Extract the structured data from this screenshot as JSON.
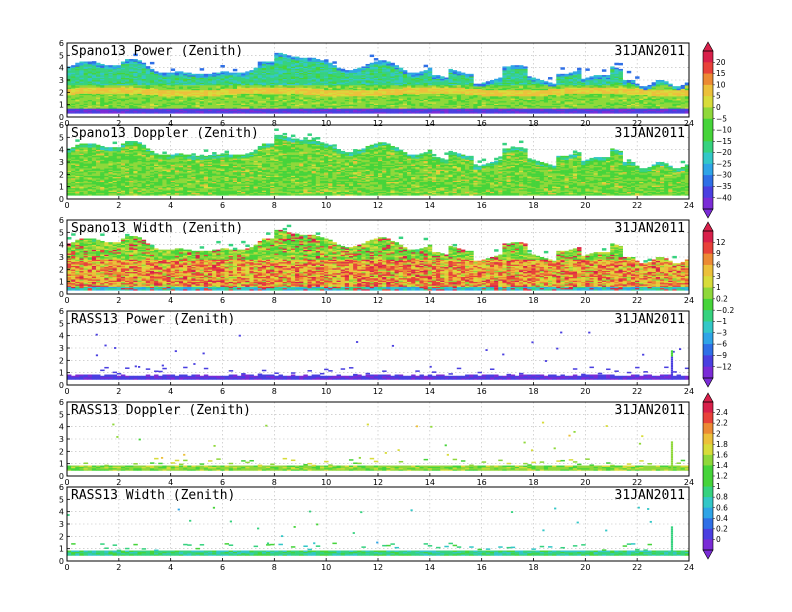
{
  "chart_data": {
    "type": "heatmap",
    "date": "31JAN2011",
    "x_axis": {
      "range": [
        0,
        24
      ],
      "ticks": [
        0,
        2,
        4,
        6,
        8,
        10,
        12,
        14,
        16,
        18,
        20,
        22,
        24
      ]
    },
    "y_axis": {
      "range": [
        0,
        6
      ],
      "ticks": [
        0,
        1,
        2,
        3,
        4,
        5,
        6
      ]
    },
    "grid": true,
    "panels": [
      {
        "title": "Spano13 Power (Zenith)",
        "date_label": "31JAN2011",
        "variable": "power",
        "colorbar": 0
      },
      {
        "title": "Spano13 Doppler (Zenith)",
        "date_label": "31JAN2011",
        "variable": "doppler",
        "colorbar": 0
      },
      {
        "title": "Spano13 Width (Zenith)",
        "date_label": "31JAN2011",
        "variable": "width",
        "colorbar": 1
      },
      {
        "title": "RASS13 Power (Zenith)",
        "date_label": "31JAN2011",
        "variable": "power",
        "colorbar": 1
      },
      {
        "title": "RASS13 Doppler (Zenith)",
        "date_label": "31JAN2011",
        "variable": "doppler",
        "colorbar": 2
      },
      {
        "title": "RASS13 Width (Zenith)",
        "date_label": "31JAN2011",
        "variable": "width",
        "colorbar": 2
      }
    ],
    "colorbars": [
      {
        "labels": [
          "20",
          "15",
          "10",
          "5",
          "0",
          "−5",
          "−10",
          "−15",
          "−20",
          "−25",
          "−30",
          "−35",
          "−40"
        ]
      },
      {
        "labels": [
          "12",
          "9",
          "6",
          "3",
          "1",
          "0.2",
          "−0.2",
          "−1",
          "−3",
          "−6",
          "−9",
          "−12"
        ]
      },
      {
        "labels": [
          "2.4",
          "2.2",
          "2",
          "1.8",
          "1.6",
          "1.4",
          "1.2",
          "1",
          "0.8",
          "0.6",
          "0.4",
          "0.2",
          "0"
        ]
      }
    ],
    "colors": [
      "#7a2bd6",
      "#4a3fe0",
      "#2f6fe6",
      "#2fa4e6",
      "#33c7c7",
      "#36d27f",
      "#46d43a",
      "#8fd83a",
      "#d8dc3a",
      "#ecc03a",
      "#ec8a34",
      "#e8423a",
      "#d8204a"
    ]
  }
}
